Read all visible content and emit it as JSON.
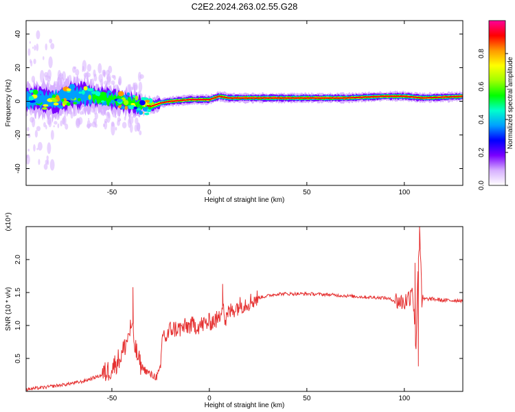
{
  "figure_title": "C2E2.2024.263.02.55.G28",
  "chart_data": [
    {
      "type": "heatmap",
      "title": "C2E2.2024.263.02.55.G28",
      "xlabel": "Height of straight line (km)",
      "ylabel": "Frequency (Hz)",
      "xlim": [
        -94,
        130
      ],
      "ylim": [
        -50,
        48
      ],
      "xticks": [
        -50,
        0,
        50,
        100
      ],
      "xtick_labels": [
        "-50",
        "0",
        "50",
        "100"
      ],
      "yticks": [
        -40,
        -20,
        0,
        20,
        40
      ],
      "ytick_labels": [
        "-40",
        "-20",
        "0",
        "20",
        "40"
      ],
      "colorbar": {
        "label": "Normalized spectral amplitude",
        "range": [
          0,
          1
        ],
        "ticks": [
          0.0,
          0.2,
          0.4,
          0.6,
          0.8
        ],
        "tick_labels": [
          "0.0",
          "0.2",
          "0.4",
          "0.6",
          "0.8"
        ],
        "colormap": [
          "#ffffff",
          "#d7b0ff",
          "#7a00ff",
          "#0000ff",
          "#00a0ff",
          "#00ffcc",
          "#00ff00",
          "#a0ff00",
          "#ffff00",
          "#ff9900",
          "#ff0000",
          "#ff0099"
        ]
      },
      "ridge": {
        "x": [
          -94,
          -80,
          -70,
          -60,
          -50,
          -40,
          -35,
          -30,
          -25,
          -20,
          -10,
          0,
          5,
          10,
          20,
          30,
          40,
          50,
          60,
          70,
          80,
          90,
          100,
          110,
          120,
          130
        ],
        "y": [
          2,
          0,
          4,
          3,
          1,
          -1,
          -2,
          -3,
          -1,
          0,
          1,
          1,
          3,
          2,
          2,
          2,
          2,
          2,
          2,
          2,
          2.5,
          3,
          3,
          2,
          2.5,
          3
        ]
      }
    },
    {
      "type": "line",
      "xlabel": "Height of straight line (km)",
      "ylabel": "SNR (10 * v/v)",
      "y_multiplier": "(x10⁴)",
      "xlim": [
        -94,
        130
      ],
      "ylim": [
        0,
        2.5
      ],
      "xticks": [
        -50,
        0,
        50,
        100
      ],
      "xtick_labels": [
        "-50",
        "0",
        "50",
        "100"
      ],
      "yticks": [
        0.5,
        1.0,
        1.5,
        2.0
      ],
      "ytick_labels": [
        "0.5",
        "1.0",
        "1.5",
        "2.0"
      ],
      "line_color": "#e53030",
      "series": [
        {
          "x": [
            -94,
            -85,
            -75,
            -65,
            -55,
            -50,
            -45,
            -42,
            -40,
            -38,
            -36,
            -34,
            -30,
            -27,
            -25,
            -24,
            -22,
            -20,
            -15,
            -10,
            -5,
            0,
            5,
            7,
            8,
            10,
            15,
            20,
            25,
            30,
            35,
            40,
            50,
            60,
            70,
            80,
            90,
            95,
            100,
            103,
            104,
            106,
            107,
            108,
            109,
            110,
            115,
            120,
            125,
            130
          ],
          "y": [
            0.03,
            0.06,
            0.1,
            0.15,
            0.25,
            0.35,
            0.55,
            0.8,
            1.0,
            0.65,
            0.45,
            0.35,
            0.25,
            0.22,
            0.35,
            0.9,
            0.8,
            0.95,
            0.95,
            1.0,
            1.0,
            1.05,
            1.1,
            1.4,
            1.05,
            1.2,
            1.3,
            1.35,
            1.42,
            1.45,
            1.48,
            1.48,
            1.48,
            1.47,
            1.45,
            1.43,
            1.42,
            1.38,
            1.35,
            1.45,
            1.65,
            0.7,
            1.9,
            2.4,
            1.3,
            1.4,
            1.4,
            1.38,
            1.38,
            1.38
          ]
        }
      ],
      "spikes": [
        {
          "x": -39.2,
          "y": 1.58
        },
        {
          "x": 6.8,
          "y": 1.63
        },
        {
          "x": 105.5,
          "y": 1.95
        },
        {
          "x": 107.2,
          "y": 0.38
        },
        {
          "x": 107.8,
          "y": 2.5
        }
      ]
    }
  ]
}
